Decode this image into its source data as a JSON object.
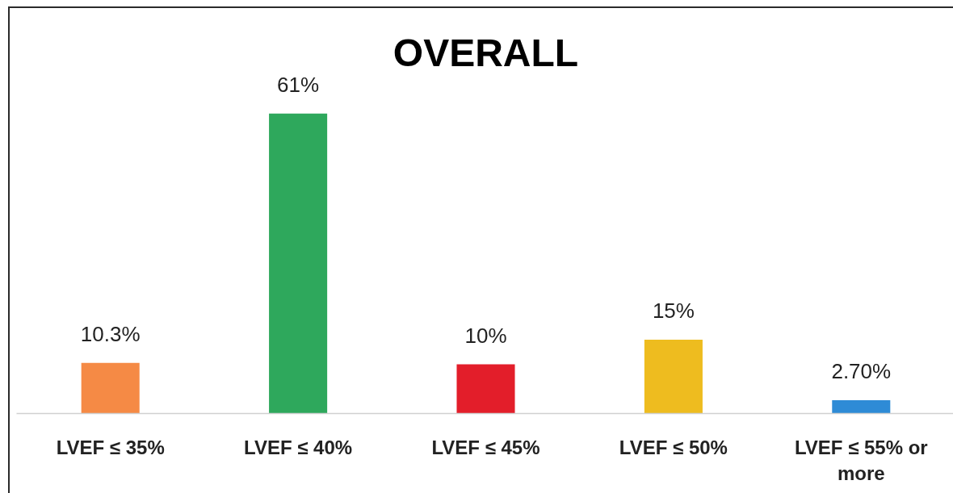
{
  "chart_data": {
    "type": "bar",
    "title": "OVERALL",
    "categories": [
      "LVEF ≤ 35%",
      "LVEF ≤ 40%",
      "LVEF ≤ 45%",
      "LVEF ≤ 50%",
      "LVEF ≤ 55% or more"
    ],
    "values": [
      10.3,
      61,
      10,
      15,
      2.7
    ],
    "colors": [
      "#f58a45",
      "#2ea85c",
      "#e31e2a",
      "#eebc1f",
      "#2e8bd6"
    ],
    "value_labels": [
      "10.3%",
      "61%",
      "10%",
      "15%",
      "2.70%"
    ],
    "grid": false
  }
}
